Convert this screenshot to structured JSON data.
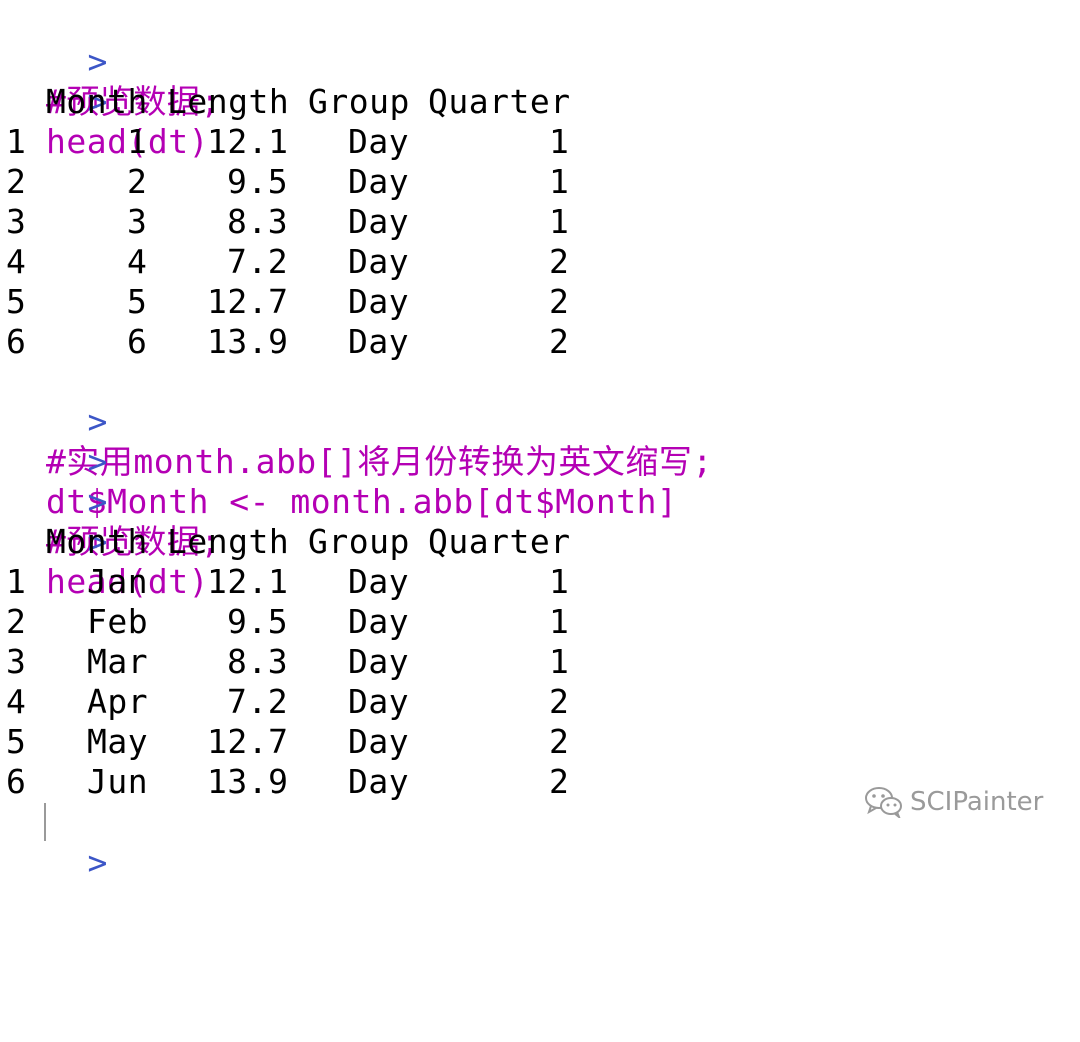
{
  "console": {
    "prompt_symbol": ">",
    "commands": {
      "c1": "#预览数据;",
      "c2": "head(dt)",
      "c3": "#实用month.abb[]将月份转换为英文缩写;",
      "c4": "dt$Month <- month.abb[dt$Month]",
      "c5": "#预览数据;",
      "c6": "head(dt)"
    },
    "table1": {
      "headers": [
        "Month",
        "Length",
        "Group",
        "Quarter"
      ],
      "rows": [
        {
          "index": "1",
          "month": "1",
          "length": "12.1",
          "group": "Day",
          "quarter": "1"
        },
        {
          "index": "2",
          "month": "2",
          "length": "9.5",
          "group": "Day",
          "quarter": "1"
        },
        {
          "index": "3",
          "month": "3",
          "length": "8.3",
          "group": "Day",
          "quarter": "1"
        },
        {
          "index": "4",
          "month": "4",
          "length": "7.2",
          "group": "Day",
          "quarter": "2"
        },
        {
          "index": "5",
          "month": "5",
          "length": "12.7",
          "group": "Day",
          "quarter": "2"
        },
        {
          "index": "6",
          "month": "6",
          "length": "13.9",
          "group": "Day",
          "quarter": "2"
        }
      ]
    },
    "table2": {
      "headers": [
        "Month",
        "Length",
        "Group",
        "Quarter"
      ],
      "rows": [
        {
          "index": "1",
          "month": "Jan",
          "length": "12.1",
          "group": "Day",
          "quarter": "1"
        },
        {
          "index": "2",
          "month": "Feb",
          "length": "9.5",
          "group": "Day",
          "quarter": "1"
        },
        {
          "index": "3",
          "month": "Mar",
          "length": "8.3",
          "group": "Day",
          "quarter": "1"
        },
        {
          "index": "4",
          "month": "Apr",
          "length": "7.2",
          "group": "Day",
          "quarter": "2"
        },
        {
          "index": "5",
          "month": "May",
          "length": "12.7",
          "group": "Day",
          "quarter": "2"
        },
        {
          "index": "6",
          "month": "Jun",
          "length": "13.9",
          "group": "Day",
          "quarter": "2"
        }
      ]
    }
  },
  "watermark": {
    "text": "SCIPainter",
    "icon": "wechat-icon"
  },
  "colors": {
    "prompt": "#3c56c7",
    "command": "#b400b4",
    "output": "#000000",
    "watermark": "#9a9a9a"
  }
}
